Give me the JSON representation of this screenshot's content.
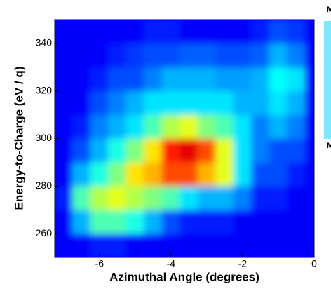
{
  "chart_data": {
    "type": "heatmap",
    "xlabel": "Azimuthal Angle (degrees)",
    "ylabel": "Energy-to-Charge (eV / q)",
    "xlim": [
      -7.25,
      0
    ],
    "ylim": [
      250,
      350
    ],
    "xticks": [
      -6,
      -4,
      -2,
      0
    ],
    "yticks": [
      260,
      280,
      300,
      320,
      340
    ],
    "xbins": [
      -7.25,
      -6.75,
      -6.25,
      -5.75,
      -5.25,
      -4.75,
      -4.25,
      -3.75,
      -3.25,
      -2.75,
      -2.25,
      -1.75,
      -1.25,
      -0.75,
      -0.25,
      0
    ],
    "ybins": [
      250,
      260,
      270,
      280,
      290,
      300,
      310,
      320,
      330,
      340,
      350
    ],
    "colormap": "jet",
    "z": [
      [
        0.12,
        0.12,
        0.15,
        0.15,
        0.12,
        0.12,
        0.12,
        0.12,
        0.12,
        0.12,
        0.12,
        0.12,
        0.12,
        0.12,
        0.12
      ],
      [
        0.12,
        0.3,
        0.45,
        0.45,
        0.4,
        0.3,
        0.2,
        0.15,
        0.15,
        0.15,
        0.12,
        0.12,
        0.12,
        0.12,
        0.12
      ],
      [
        0.15,
        0.45,
        0.55,
        0.6,
        0.55,
        0.5,
        0.45,
        0.35,
        0.3,
        0.3,
        0.25,
        0.15,
        0.15,
        0.12,
        0.12
      ],
      [
        0.12,
        0.3,
        0.4,
        0.5,
        0.65,
        0.7,
        0.8,
        0.8,
        0.7,
        0.6,
        0.35,
        0.2,
        0.2,
        0.15,
        0.12
      ],
      [
        0.12,
        0.2,
        0.3,
        0.4,
        0.5,
        0.65,
        0.85,
        0.9,
        0.8,
        0.6,
        0.35,
        0.25,
        0.2,
        0.2,
        0.12
      ],
      [
        0.12,
        0.15,
        0.25,
        0.3,
        0.35,
        0.45,
        0.55,
        0.6,
        0.5,
        0.45,
        0.35,
        0.25,
        0.3,
        0.25,
        0.12
      ],
      [
        0.12,
        0.12,
        0.2,
        0.25,
        0.3,
        0.35,
        0.35,
        0.35,
        0.35,
        0.35,
        0.3,
        0.3,
        0.35,
        0.3,
        0.12
      ],
      [
        0.12,
        0.12,
        0.15,
        0.2,
        0.2,
        0.25,
        0.3,
        0.3,
        0.3,
        0.28,
        0.28,
        0.3,
        0.38,
        0.35,
        0.12
      ],
      [
        0.12,
        0.12,
        0.12,
        0.15,
        0.18,
        0.2,
        0.2,
        0.22,
        0.22,
        0.2,
        0.2,
        0.22,
        0.3,
        0.25,
        0.12
      ],
      [
        0.12,
        0.12,
        0.12,
        0.12,
        0.12,
        0.15,
        0.15,
        0.12,
        0.12,
        0.12,
        0.12,
        0.15,
        0.2,
        0.18,
        0.12
      ]
    ],
    "colorbar": {
      "max_label": "M",
      "min_label": "M"
    }
  }
}
